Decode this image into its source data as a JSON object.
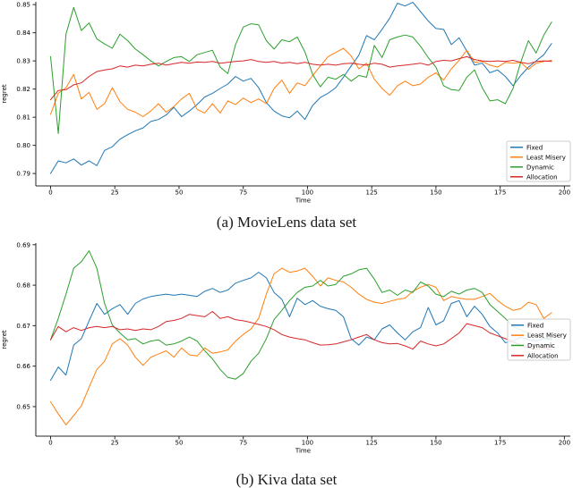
{
  "figure": {
    "caption_a": "(a) MovieLens data set",
    "caption_b": "(b) Kiva data set"
  },
  "colors": {
    "fixed": "#1f77b4",
    "least_misery": "#ff7f0e",
    "dynamic": "#2ca02c",
    "allocation": "#d62728",
    "spine": "#262626",
    "tick_text": "#000000",
    "legend_border": "#cccccc",
    "legend_fill": "rgba(255,255,255,0.85)"
  },
  "chart_data": [
    {
      "id": "a",
      "type": "line",
      "title": "(a) MovieLens data set",
      "xlabel": "Time",
      "ylabel": "regret",
      "x_ticks": [
        0,
        25,
        50,
        75,
        100,
        125,
        150,
        175,
        200
      ],
      "y_ticks": [
        0.79,
        0.8,
        0.81,
        0.82,
        0.83,
        0.84,
        0.85
      ],
      "y_tick_labels": [
        "0.79",
        "0.80",
        "0.81",
        "0.82",
        "0.83",
        "0.84",
        "0.85"
      ],
      "xlim": [
        -5.75,
        202.3
      ],
      "ylim": [
        0.7856,
        0.851
      ],
      "grid": false,
      "legend_position": "lower right",
      "x_start": 0,
      "x_step": 3,
      "series": [
        {
          "name": "Fixed",
          "color": "#1f77b4",
          "values": [
            0.79,
            0.7945,
            0.7938,
            0.7952,
            0.793,
            0.7945,
            0.7928,
            0.7982,
            0.7995,
            0.8022,
            0.8038,
            0.8052,
            0.8062,
            0.8085,
            0.8092,
            0.8108,
            0.8135,
            0.8102,
            0.8122,
            0.8145,
            0.8172,
            0.8185,
            0.8202,
            0.8218,
            0.8245,
            0.8228,
            0.8238,
            0.8205,
            0.8152,
            0.8122,
            0.8105,
            0.8098,
            0.8122,
            0.8092,
            0.8142,
            0.817,
            0.8185,
            0.8205,
            0.8242,
            0.8282,
            0.832,
            0.839,
            0.8375,
            0.8412,
            0.8452,
            0.8505,
            0.8495,
            0.8508,
            0.8475,
            0.8442,
            0.8415,
            0.8412,
            0.8358,
            0.8382,
            0.8335,
            0.8285,
            0.8292,
            0.8258,
            0.8268,
            0.8245,
            0.8212,
            0.8248,
            0.8278,
            0.83,
            0.8322,
            0.8362
          ]
        },
        {
          "name": "Least Misery",
          "color": "#ff7f0e",
          "values": [
            0.811,
            0.8185,
            0.8205,
            0.8252,
            0.8165,
            0.8188,
            0.8128,
            0.8148,
            0.8205,
            0.8155,
            0.8128,
            0.8118,
            0.8102,
            0.8122,
            0.8148,
            0.8118,
            0.8138,
            0.8165,
            0.8185,
            0.8128,
            0.8115,
            0.8148,
            0.8115,
            0.8158,
            0.8145,
            0.8168,
            0.8152,
            0.8165,
            0.8148,
            0.8202,
            0.8232,
            0.8185,
            0.8222,
            0.8212,
            0.8248,
            0.8282,
            0.8315,
            0.833,
            0.8345,
            0.8318,
            0.8272,
            0.8292,
            0.8235,
            0.8202,
            0.8178,
            0.8212,
            0.8228,
            0.8212,
            0.8218,
            0.8242,
            0.8258,
            0.8232,
            0.8272,
            0.8302,
            0.8338,
            0.8295,
            0.8298,
            0.8285,
            0.8278,
            0.8295,
            0.8292,
            0.8295,
            0.827,
            0.8292,
            0.8298,
            0.8302
          ]
        },
        {
          "name": "Dynamic",
          "color": "#2ca02c",
          "values": [
            0.8315,
            0.8042,
            0.8395,
            0.849,
            0.8408,
            0.8435,
            0.8378,
            0.836,
            0.8345,
            0.8395,
            0.8372,
            0.8342,
            0.8322,
            0.83,
            0.8282,
            0.8298,
            0.8312,
            0.8315,
            0.8298,
            0.8322,
            0.833,
            0.8338,
            0.8278,
            0.8255,
            0.8358,
            0.842,
            0.8432,
            0.8428,
            0.8372,
            0.8342,
            0.8375,
            0.8368,
            0.8385,
            0.8332,
            0.8252,
            0.8208,
            0.8242,
            0.8235,
            0.8252,
            0.8228,
            0.8248,
            0.8242,
            0.8355,
            0.8312,
            0.8375,
            0.8385,
            0.8392,
            0.8385,
            0.8352,
            0.8312,
            0.8278,
            0.8212,
            0.8198,
            0.8195,
            0.8242,
            0.8268,
            0.8205,
            0.8158,
            0.8162,
            0.8148,
            0.8202,
            0.8295,
            0.8372,
            0.8328,
            0.8392,
            0.8438
          ]
        },
        {
          "name": "Allocation",
          "color": "#d62728",
          "values": [
            0.8162,
            0.8195,
            0.8198,
            0.8215,
            0.8222,
            0.8245,
            0.8262,
            0.8268,
            0.8272,
            0.8282,
            0.8278,
            0.8285,
            0.8282,
            0.8288,
            0.8292,
            0.8285,
            0.829,
            0.8295,
            0.8292,
            0.8296,
            0.8295,
            0.8298,
            0.8292,
            0.8295,
            0.8298,
            0.83,
            0.8305,
            0.8298,
            0.8295,
            0.8298,
            0.8292,
            0.8295,
            0.829,
            0.8295,
            0.8288,
            0.8285,
            0.8288,
            0.8285,
            0.829,
            0.8292,
            0.8288,
            0.8285,
            0.8292,
            0.8288,
            0.8278,
            0.8282,
            0.8285,
            0.8288,
            0.8292,
            0.8285,
            0.8298,
            0.8302,
            0.83,
            0.8308,
            0.8315,
            0.8305,
            0.83,
            0.8298,
            0.83,
            0.8298,
            0.8302,
            0.8295,
            0.829,
            0.8298,
            0.83,
            0.8298
          ]
        }
      ]
    },
    {
      "id": "b",
      "type": "line",
      "title": "(b) Kiva data set",
      "xlabel": "Time",
      "ylabel": "regret",
      "x_ticks": [
        0,
        25,
        50,
        75,
        100,
        125,
        150,
        175,
        200
      ],
      "y_ticks": [
        0.65,
        0.66,
        0.67,
        0.68,
        0.69
      ],
      "y_tick_labels": [
        "0.65",
        "0.66",
        "0.67",
        "0.68",
        "0.69"
      ],
      "xlim": [
        -5.75,
        202.3
      ],
      "ylim": [
        0.6427,
        0.6904
      ],
      "grid": false,
      "legend_position": "center right",
      "x_start": 0,
      "x_step": 3,
      "series": [
        {
          "name": "Fixed",
          "color": "#1f77b4",
          "values": [
            0.6565,
            0.6598,
            0.6578,
            0.6652,
            0.6668,
            0.6712,
            0.6755,
            0.6728,
            0.6742,
            0.6752,
            0.6728,
            0.6755,
            0.6766,
            0.6772,
            0.6775,
            0.6778,
            0.6775,
            0.6778,
            0.6775,
            0.6772,
            0.6785,
            0.6792,
            0.6782,
            0.6788,
            0.6805,
            0.6812,
            0.6818,
            0.6832,
            0.6818,
            0.6782,
            0.6765,
            0.6722,
            0.6768,
            0.6752,
            0.6762,
            0.6748,
            0.6742,
            0.6738,
            0.6722,
            0.6668,
            0.6652,
            0.6672,
            0.6665,
            0.6692,
            0.6702,
            0.6682,
            0.6665,
            0.6685,
            0.6695,
            0.6745,
            0.6702,
            0.6712,
            0.6755,
            0.6762,
            0.6722,
            0.6748,
            0.6728,
            0.6698,
            0.6682,
            0.6658,
            0.6662,
            0.6672,
            0.6665,
            0.6662,
            0.6668,
            0.6665
          ]
        },
        {
          "name": "Least Misery",
          "color": "#ff7f0e",
          "values": [
            0.6512,
            0.6482,
            0.6455,
            0.6478,
            0.6502,
            0.6548,
            0.6592,
            0.6612,
            0.6655,
            0.6668,
            0.6652,
            0.6622,
            0.6602,
            0.6622,
            0.663,
            0.6638,
            0.6622,
            0.6645,
            0.6628,
            0.6625,
            0.6645,
            0.6632,
            0.6635,
            0.664,
            0.6662,
            0.6678,
            0.6692,
            0.6718,
            0.6778,
            0.6828,
            0.6842,
            0.6832,
            0.6835,
            0.6842,
            0.6822,
            0.6798,
            0.6818,
            0.6812,
            0.6808,
            0.6795,
            0.6778,
            0.6765,
            0.6758,
            0.6755,
            0.676,
            0.6765,
            0.6768,
            0.6785,
            0.6795,
            0.6802,
            0.6795,
            0.6762,
            0.6772,
            0.6768,
            0.6765,
            0.6765,
            0.6772,
            0.678,
            0.6762,
            0.6748,
            0.6738,
            0.6742,
            0.6758,
            0.6752,
            0.6718,
            0.6732
          ]
        },
        {
          "name": "Dynamic",
          "color": "#2ca02c",
          "values": [
            0.6665,
            0.6718,
            0.6778,
            0.6842,
            0.6858,
            0.6885,
            0.6842,
            0.6755,
            0.6702,
            0.6682,
            0.6665,
            0.6668,
            0.6655,
            0.6662,
            0.6665,
            0.6652,
            0.6655,
            0.6662,
            0.6672,
            0.6662,
            0.6638,
            0.6618,
            0.6592,
            0.6572,
            0.6568,
            0.6582,
            0.6612,
            0.6632,
            0.6668,
            0.6715,
            0.6738,
            0.6762,
            0.6782,
            0.6795,
            0.6798,
            0.6812,
            0.6798,
            0.6802,
            0.6822,
            0.6828,
            0.6838,
            0.6842,
            0.6815,
            0.6782,
            0.6788,
            0.6775,
            0.6788,
            0.6782,
            0.6808,
            0.6798,
            0.6778,
            0.6772,
            0.6785,
            0.6778,
            0.6788,
            0.6792,
            0.6782,
            0.6752,
            0.6735,
            0.6718,
            0.6698,
            0.669,
            0.6682,
            0.6675,
            0.667,
            0.6668
          ]
        },
        {
          "name": "Allocation",
          "color": "#d62728",
          "values": [
            0.6665,
            0.6698,
            0.6685,
            0.6695,
            0.6688,
            0.6695,
            0.6698,
            0.6695,
            0.6698,
            0.669,
            0.6692,
            0.6688,
            0.6692,
            0.669,
            0.6698,
            0.671,
            0.6713,
            0.6718,
            0.6728,
            0.6725,
            0.6722,
            0.6735,
            0.6718,
            0.6722,
            0.6715,
            0.6712,
            0.6708,
            0.6703,
            0.6698,
            0.669,
            0.6678,
            0.6672,
            0.6668,
            0.6665,
            0.6658,
            0.6652,
            0.6653,
            0.6655,
            0.666,
            0.6665,
            0.6672,
            0.6678,
            0.6665,
            0.6658,
            0.6655,
            0.6656,
            0.665,
            0.6642,
            0.6662,
            0.6655,
            0.665,
            0.6655,
            0.6668,
            0.6682,
            0.6705,
            0.67,
            0.6695,
            0.6682,
            0.6675,
            0.6668,
            0.666,
            0.6652,
            0.6645,
            0.6642,
            0.6645,
            0.664
          ]
        }
      ]
    }
  ]
}
